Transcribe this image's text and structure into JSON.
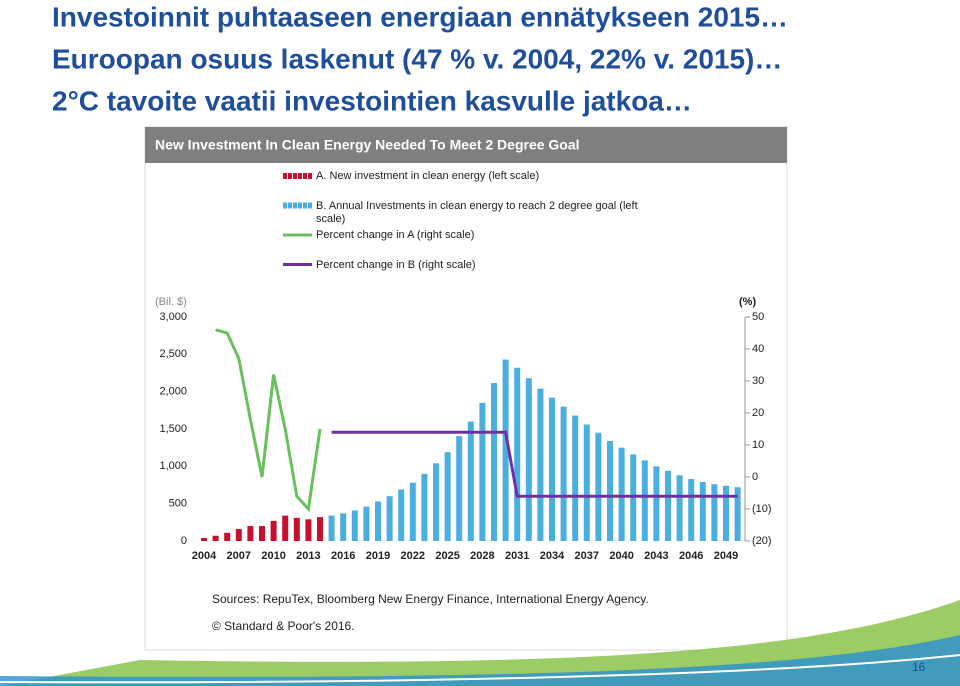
{
  "slide": {
    "headings": [
      "Investoinnit puhtaaseen energiaan ennätykseen 2015…",
      "Euroopan osuus laskenut (47 % v. 2004, 22% v. 2015)…",
      "2°C tavoite vaatii investointien kasvulle jatkoa…"
    ],
    "page_number": "16"
  },
  "chart_data": {
    "type": "bar",
    "title": "New Investment In Clean Energy Needed To Meet 2 Degree Goal",
    "y_label": "(Bil. $)",
    "y2_label": "(%)",
    "sources": [
      "Sources: RepuTex, Bloomberg New Energy Finance, International Energy Agency.",
      "© Standard & Poor's 2016."
    ],
    "categories": [
      "2004",
      null,
      null,
      "2007",
      null,
      null,
      "2010",
      null,
      null,
      "2013",
      null,
      null,
      "2016",
      null,
      null,
      "2019",
      null,
      null,
      "2022",
      null,
      null,
      "2025",
      null,
      null,
      "2028",
      null,
      null,
      "2031",
      null,
      null,
      "2034",
      null,
      null,
      "2037",
      null,
      null,
      "2040",
      null,
      null,
      "2043",
      null,
      null,
      "2046",
      null,
      null,
      "2049",
      null
    ],
    "ylim": [
      0,
      3000
    ],
    "yticks": [
      0,
      500,
      {
        "value": 1000,
        "label": "1,000"
      },
      {
        "value": 1500,
        "label": "1,500"
      },
      {
        "value": 2000,
        "label": "2,000"
      },
      {
        "value": 2500,
        "label": "2,500"
      },
      {
        "value": 3000,
        "label": "3,000"
      }
    ],
    "y2lim": [
      -20,
      50
    ],
    "y2ticks": [
      {
        "value": -20,
        "label": "(20)"
      },
      {
        "value": -10,
        "label": "(10)"
      },
      0,
      10,
      20,
      30,
      40,
      50
    ],
    "series": [
      {
        "name": "A. New investment in clean energy (left scale)",
        "type": "bar",
        "color": "#c8102e",
        "values": [
          40,
          70,
          110,
          160,
          200,
          200,
          270,
          340,
          310,
          290,
          320,
          null,
          null,
          null,
          null,
          null,
          null,
          null,
          null,
          null,
          null,
          null,
          null,
          null,
          null,
          null,
          null,
          null,
          null,
          null,
          null,
          null,
          null,
          null,
          null,
          null,
          null,
          null,
          null,
          null,
          null,
          null,
          null,
          null,
          null,
          null,
          null
        ]
      },
      {
        "name": "B. Annual Investments in clean energy to reach 2 degree goal (left scale)",
        "type": "bar",
        "color": "#4aaee0",
        "values": [
          null,
          null,
          null,
          null,
          null,
          null,
          null,
          null,
          null,
          null,
          null,
          340,
          370,
          410,
          460,
          530,
          600,
          690,
          780,
          900,
          1040,
          1190,
          1405,
          1600,
          1850,
          2115,
          2430,
          2320,
          2180,
          2040,
          1920,
          1800,
          1680,
          1560,
          1450,
          1340,
          1250,
          1160,
          1080,
          1000,
          940,
          880,
          830,
          790,
          760,
          740,
          720
        ]
      },
      {
        "name": "Percent change in A (right scale)",
        "type": "line",
        "axis": "y2",
        "color": "#6abf5e",
        "values": [
          null,
          46,
          45,
          37,
          18,
          0,
          32,
          15,
          -6,
          -10,
          15,
          null,
          null,
          null,
          null,
          null,
          null,
          null,
          null,
          null,
          null,
          null,
          null,
          null,
          null,
          null,
          null,
          null,
          null,
          null,
          null,
          null,
          null,
          null,
          null,
          null,
          null,
          null,
          null,
          null,
          null,
          null,
          null,
          null,
          null,
          null,
          null
        ]
      },
      {
        "name": "Percent change in B (right scale)",
        "type": "line",
        "axis": "y2",
        "color": "#7030a0",
        "values": [
          null,
          null,
          null,
          null,
          null,
          null,
          null,
          null,
          null,
          null,
          null,
          14,
          14,
          14,
          14,
          14,
          14,
          14,
          14,
          14,
          14,
          14,
          14,
          14,
          14,
          14,
          14,
          -6,
          -6,
          -6,
          -6,
          -6,
          -6,
          -6,
          -6,
          -6,
          -6,
          -6,
          -6,
          -6,
          -6,
          -6,
          -6,
          -6,
          -6,
          -6,
          -6
        ]
      }
    ]
  }
}
